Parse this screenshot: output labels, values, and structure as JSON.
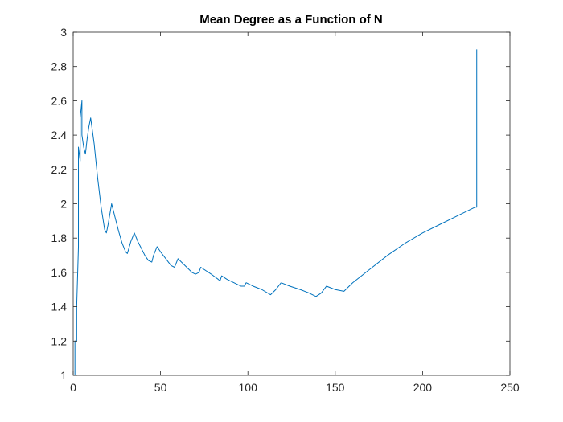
{
  "chart_data": {
    "type": "line",
    "title": "Mean Degree as a Function of N",
    "xlabel": "",
    "ylabel": "",
    "xlim": [
      0,
      250
    ],
    "ylim": [
      1,
      3
    ],
    "xticks": [
      0,
      50,
      100,
      150,
      200,
      250
    ],
    "yticks": [
      1,
      1.2,
      1.4,
      1.6,
      1.8,
      2,
      2.2,
      2.4,
      2.6,
      2.8,
      3
    ],
    "xtick_labels": [
      "0",
      "50",
      "100",
      "150",
      "200",
      "250"
    ],
    "ytick_labels": [
      "1",
      "1.2",
      "1.4",
      "1.6",
      "1.8",
      "2",
      "2.2",
      "2.4",
      "2.6",
      "2.8",
      "3"
    ],
    "grid": false,
    "line_color": "#0072BD",
    "series": [
      {
        "values": [
          [
            1,
            1
          ],
          [
            1,
            1.2
          ],
          [
            2,
            1.2
          ],
          [
            2,
            1.4
          ],
          [
            3,
            1.75
          ],
          [
            3,
            2.33
          ],
          [
            4,
            2.25
          ],
          [
            4,
            2.5
          ],
          [
            5,
            2.6
          ],
          [
            5,
            2.4
          ],
          [
            6,
            2.33
          ],
          [
            7,
            2.29
          ],
          [
            8,
            2.38
          ],
          [
            9,
            2.45
          ],
          [
            10,
            2.5
          ],
          [
            12,
            2.35
          ],
          [
            14,
            2.15
          ],
          [
            16,
            1.98
          ],
          [
            18,
            1.85
          ],
          [
            19,
            1.83
          ],
          [
            20,
            1.88
          ],
          [
            22,
            2.0
          ],
          [
            24,
            1.92
          ],
          [
            26,
            1.84
          ],
          [
            28,
            1.77
          ],
          [
            30,
            1.72
          ],
          [
            31,
            1.71
          ],
          [
            33,
            1.78
          ],
          [
            35,
            1.83
          ],
          [
            37,
            1.78
          ],
          [
            39,
            1.74
          ],
          [
            41,
            1.7
          ],
          [
            43,
            1.67
          ],
          [
            45,
            1.66
          ],
          [
            46,
            1.7
          ],
          [
            48,
            1.75
          ],
          [
            50,
            1.72
          ],
          [
            53,
            1.68
          ],
          [
            56,
            1.64
          ],
          [
            58,
            1.63
          ],
          [
            60,
            1.68
          ],
          [
            62,
            1.66
          ],
          [
            65,
            1.63
          ],
          [
            68,
            1.6
          ],
          [
            70,
            1.59
          ],
          [
            72,
            1.6
          ],
          [
            73,
            1.63
          ],
          [
            76,
            1.61
          ],
          [
            79,
            1.59
          ],
          [
            83,
            1.56
          ],
          [
            84,
            1.55
          ],
          [
            85,
            1.58
          ],
          [
            88,
            1.56
          ],
          [
            92,
            1.54
          ],
          [
            96,
            1.52
          ],
          [
            98,
            1.52
          ],
          [
            99,
            1.54
          ],
          [
            103,
            1.52
          ],
          [
            108,
            1.5
          ],
          [
            113,
            1.47
          ],
          [
            116,
            1.5
          ],
          [
            119,
            1.54
          ],
          [
            124,
            1.52
          ],
          [
            130,
            1.5
          ],
          [
            135,
            1.48
          ],
          [
            139,
            1.46
          ],
          [
            142,
            1.48
          ],
          [
            145,
            1.52
          ],
          [
            150,
            1.5
          ],
          [
            155,
            1.49
          ],
          [
            160,
            1.54
          ],
          [
            170,
            1.62
          ],
          [
            180,
            1.7
          ],
          [
            190,
            1.77
          ],
          [
            200,
            1.83
          ],
          [
            210,
            1.88
          ],
          [
            220,
            1.93
          ],
          [
            230,
            1.98
          ],
          [
            231,
            1.98
          ],
          [
            231,
            2.2
          ],
          [
            231,
            2.6
          ],
          [
            231,
            2.9
          ]
        ]
      }
    ]
  }
}
